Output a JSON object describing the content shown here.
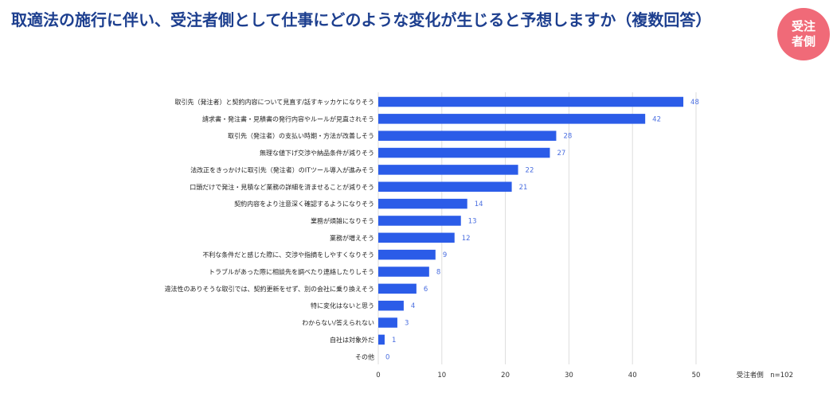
{
  "header": {
    "title": "取適法の施行に伴い、受注者側として仕事にどのような変化が生じると予想しますか（複数回答）",
    "badge": "受注\n者側"
  },
  "colors": {
    "bar": "#2b5ce8",
    "value_label": "#4a6ee0",
    "title": "#1d3f8f",
    "badge": "#f06a78",
    "grid": "#dddddd"
  },
  "chart_data": {
    "type": "bar",
    "orientation": "horizontal",
    "categories": [
      "取引先（発注者）と契約内容について見直す/話すキッカケになりそう",
      "請求書・発注書・見積書の発行内容やルールが見直されそう",
      "取引先（発注者）の支払い時期・方法が改善しそう",
      "無理な値下げ交渉や納品条件が減りそう",
      "法改正をきっかけに取引先（発注者）のITツール導入が進みそう",
      "口頭だけで発注・見積など業務の詳細を済ませることが減りそう",
      "契約内容をより注意深く確認するようになりそう",
      "業務が煩雑になりそう",
      "業務が増えそう",
      "不利な条件だと感じた際に、交渉や指摘をしやすくなりそう",
      "トラブルがあった際に相談先を調べたり連絡したりしそう",
      "違法性のありそうな取引では、契約更新をせず、別の会社に乗り換えそう",
      "特に変化はないと思う",
      "わからない/答えられない",
      "自社は対象外だ",
      "その他"
    ],
    "values": [
      48,
      42,
      28,
      27,
      22,
      21,
      14,
      13,
      12,
      9,
      8,
      6,
      4,
      3,
      1,
      0
    ],
    "xlim": [
      0,
      50
    ],
    "xticks": [
      "0",
      "10",
      "20",
      "30",
      "40",
      "50"
    ],
    "grid": true,
    "note": "受注者側　n=102"
  }
}
